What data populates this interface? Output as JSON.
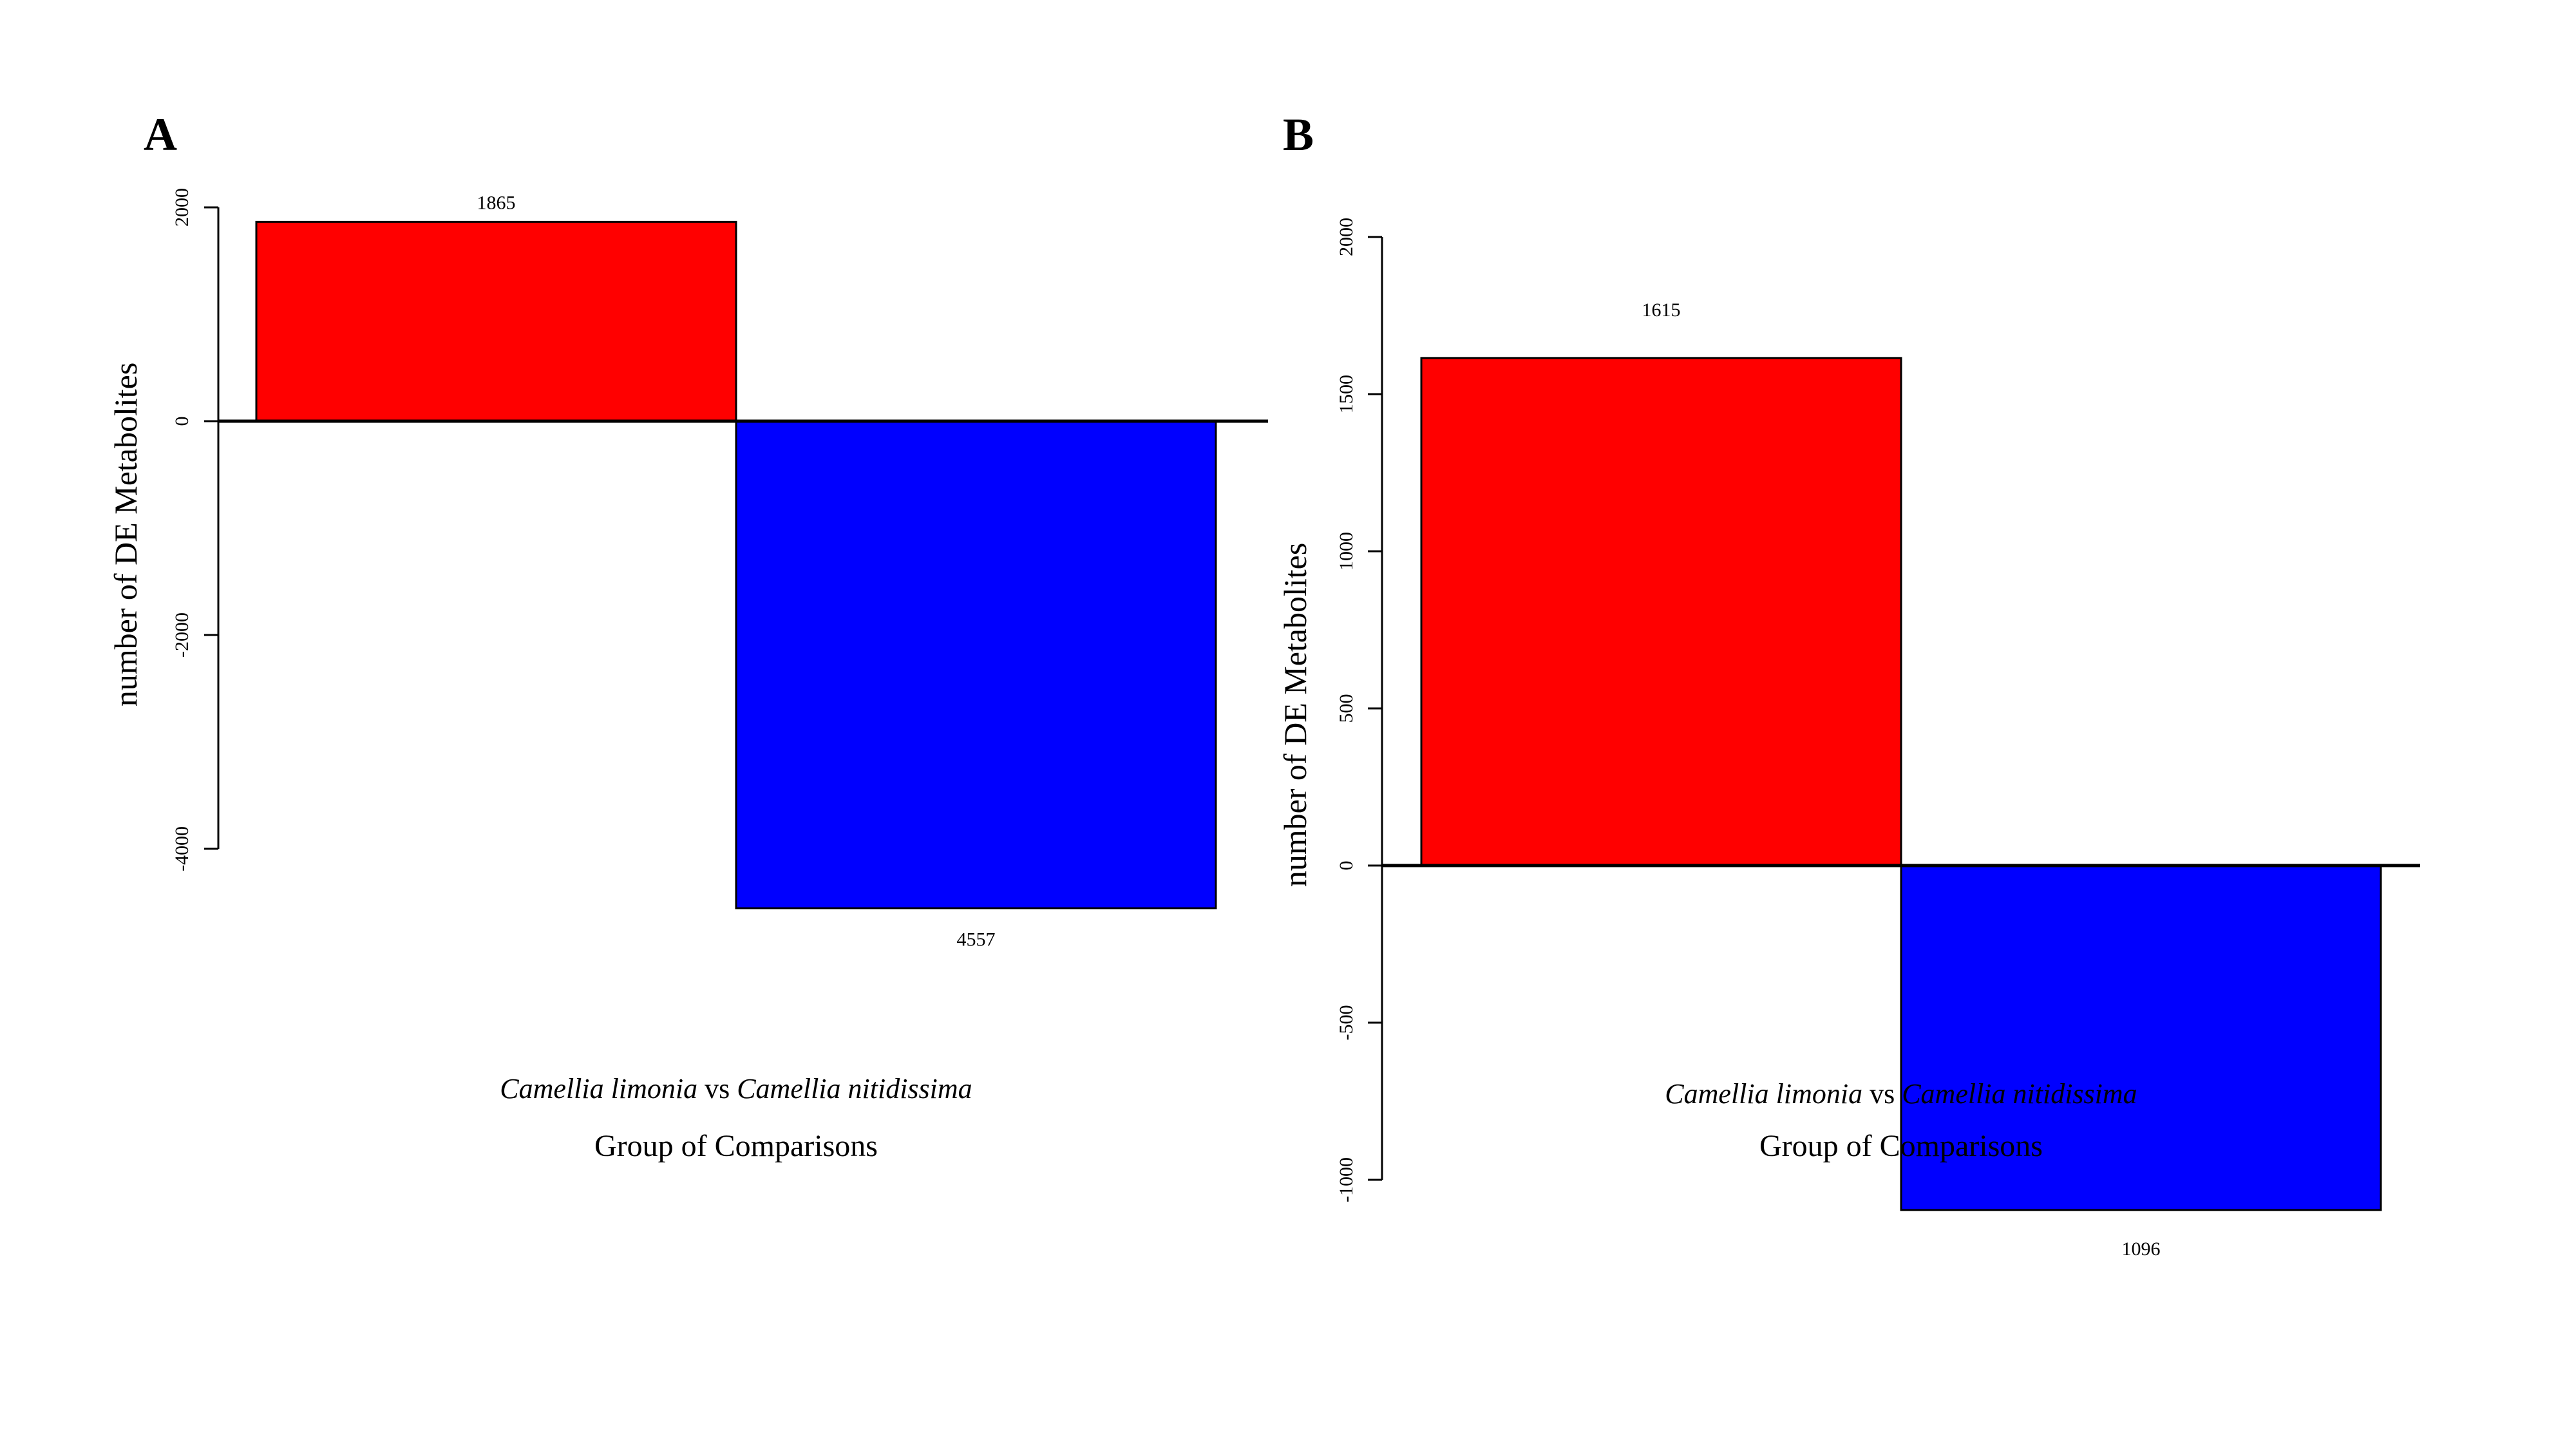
{
  "colors": {
    "up": "#ff0000",
    "down": "#0000ff",
    "axis": "#000000"
  },
  "chart_data": [
    {
      "panel": "A",
      "type": "bar",
      "categories": [
        "up",
        "down"
      ],
      "values": [
        1865,
        -4557
      ],
      "value_labels": [
        "1865",
        "4557"
      ],
      "ylabel": "number of DE Metabolites",
      "xlabel": "Group of Comparisons",
      "group_label": {
        "species1": "Camellia limonia",
        "vs": " vs ",
        "species2": "Camellia nitidissima"
      },
      "yticks": [
        2000,
        0,
        -2000,
        -4000
      ],
      "ylim": [
        -4557,
        2000
      ],
      "grid": false
    },
    {
      "panel": "B",
      "type": "bar",
      "categories": [
        "up",
        "down"
      ],
      "values": [
        1615,
        -1096
      ],
      "value_labels": [
        "1615",
        "1096"
      ],
      "ylabel": "number of DE Metabolites",
      "xlabel": "Group of Comparisons",
      "group_label": {
        "species1": "Camellia limonia",
        "vs": " vs ",
        "species2": "Camellia nitidissima"
      },
      "yticks": [
        2000,
        1500,
        1000,
        500,
        0,
        -500,
        -1000
      ],
      "ylim": [
        -1096,
        2000
      ],
      "grid": false
    }
  ]
}
